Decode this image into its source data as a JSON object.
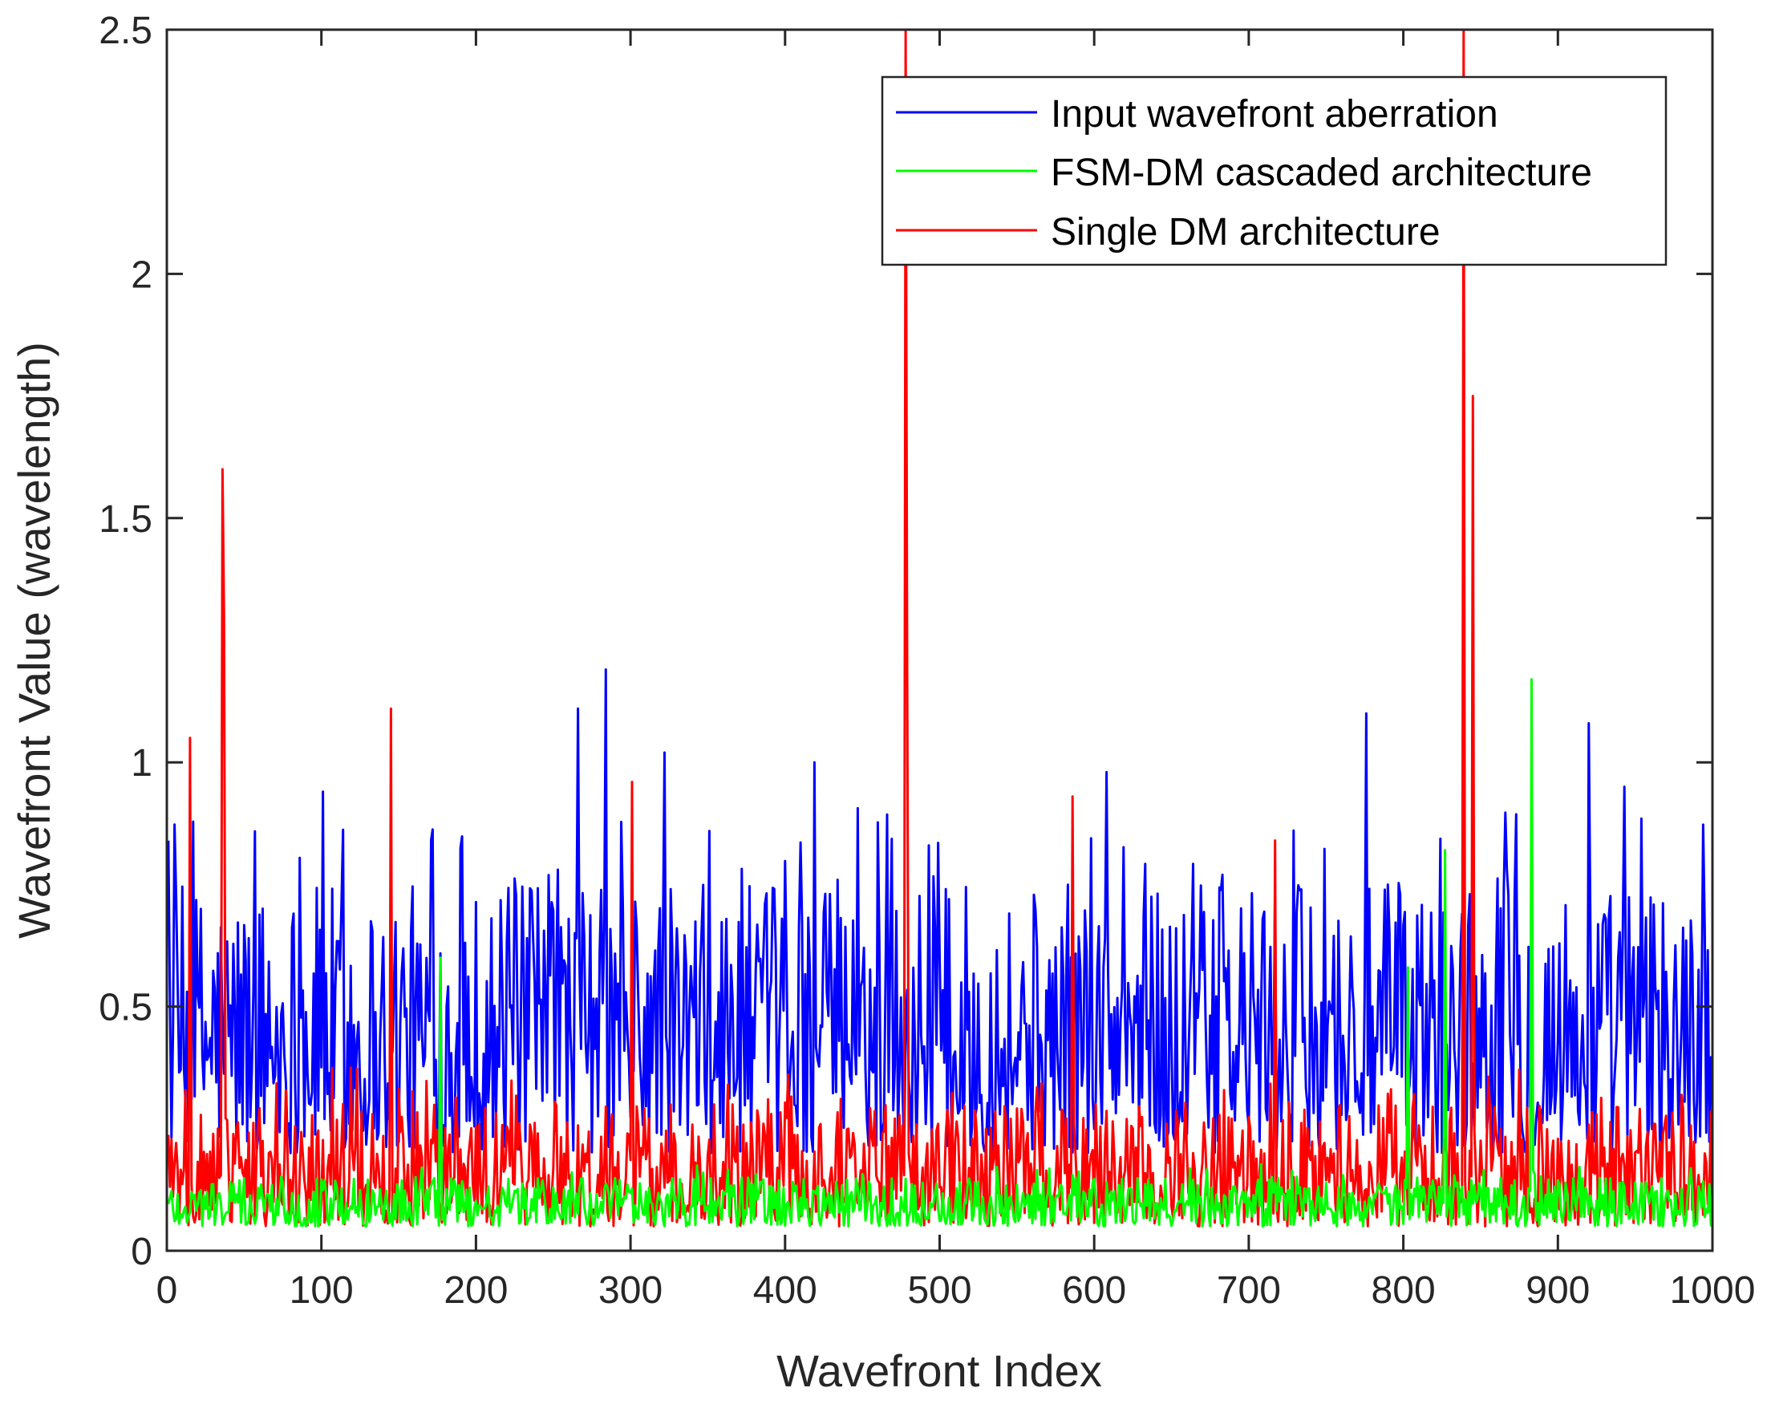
{
  "chart_data": {
    "type": "line",
    "title": "",
    "xlabel": "Wavefront Index",
    "ylabel": "Wavefront Value (wavelength)",
    "xlim": [
      0,
      1000
    ],
    "ylim": [
      0,
      2.5
    ],
    "xticks": [
      0,
      100,
      200,
      300,
      400,
      500,
      600,
      700,
      800,
      900,
      1000
    ],
    "yticks": [
      0,
      0.5,
      1,
      1.5,
      2,
      2.5
    ],
    "xtick_labels": [
      "0",
      "100",
      "200",
      "300",
      "400",
      "500",
      "600",
      "700",
      "800",
      "900",
      "1000"
    ],
    "ytick_labels": [
      "0",
      "0.5",
      "1",
      "1.5",
      "2",
      "2.5"
    ],
    "grid": false,
    "legend_position": "top-right",
    "series": [
      {
        "name": "Input wavefront aberration",
        "color": "#0000ff",
        "n_points": 1000,
        "baseline_range": [
          0.2,
          0.75
        ],
        "peaks": [
          [
            100,
            0.94
          ],
          [
            265,
            1.11
          ],
          [
            283,
            1.19
          ],
          [
            321,
            1.02
          ],
          [
            418,
            1.0
          ],
          [
            607,
            0.98
          ],
          [
            775,
            1.1
          ],
          [
            919,
            1.08
          ],
          [
            942,
            0.95
          ]
        ]
      },
      {
        "name": "FSM-DM cascaded architecture",
        "color": "#00ff00",
        "n_points": 1000,
        "baseline_range": [
          0.05,
          0.15
        ],
        "peaks": [
          [
            176,
            0.6
          ],
          [
            802,
            0.58
          ],
          [
            826,
            0.82
          ],
          [
            882,
            1.17
          ]
        ]
      },
      {
        "name": "Single DM architecture",
        "color": "#ff0000",
        "n_points": 1000,
        "baseline_range": [
          0.05,
          0.3
        ],
        "peaks": [
          [
            14,
            1.05
          ],
          [
            35,
            1.6
          ],
          [
            36,
            1.3
          ],
          [
            144,
            1.11
          ],
          [
            300,
            0.96
          ],
          [
            477,
            2.5
          ],
          [
            478,
            1.2
          ],
          [
            585,
            0.93
          ],
          [
            716,
            0.84
          ],
          [
            838,
            2.5
          ],
          [
            844,
            1.75
          ]
        ]
      }
    ]
  }
}
